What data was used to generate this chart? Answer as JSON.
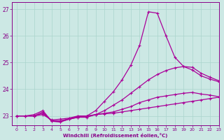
{
  "xlabel": "Windchill (Refroidissement éolien,°C)",
  "xlim": [
    -0.5,
    23
  ],
  "ylim": [
    22.65,
    27.25
  ],
  "yticks": [
    23,
    24,
    25,
    26,
    27
  ],
  "xticks": [
    0,
    1,
    2,
    3,
    4,
    5,
    6,
    7,
    8,
    9,
    10,
    11,
    12,
    13,
    14,
    15,
    16,
    17,
    18,
    19,
    20,
    21,
    22,
    23
  ],
  "bg_color": "#cce8e4",
  "line_color": "#aa0099",
  "grid_color": "#aad4cc",
  "lines": [
    {
      "x": [
        0,
        1,
        2,
        3,
        4,
        5,
        6,
        7,
        8,
        9,
        10,
        11,
        12,
        13,
        14,
        15,
        16,
        17,
        18,
        19,
        20,
        21,
        22,
        23
      ],
      "y": [
        23.0,
        23.0,
        23.0,
        23.05,
        22.85,
        22.88,
        22.92,
        23.0,
        23.0,
        23.05,
        23.08,
        23.1,
        23.15,
        23.2,
        23.25,
        23.3,
        23.35,
        23.4,
        23.45,
        23.5,
        23.55,
        23.6,
        23.65,
        23.7
      ]
    },
    {
      "x": [
        0,
        1,
        2,
        3,
        4,
        5,
        6,
        7,
        8,
        9,
        10,
        11,
        12,
        13,
        14,
        15,
        16,
        17,
        18,
        19,
        20,
        21,
        22,
        23
      ],
      "y": [
        23.0,
        23.0,
        23.0,
        23.1,
        22.82,
        22.82,
        22.9,
        22.98,
        22.98,
        23.05,
        23.1,
        23.15,
        23.25,
        23.35,
        23.5,
        23.6,
        23.7,
        23.75,
        23.8,
        23.85,
        23.88,
        23.82,
        23.78,
        23.72
      ]
    },
    {
      "x": [
        0,
        1,
        2,
        3,
        4,
        5,
        6,
        7,
        8,
        9,
        10,
        11,
        12,
        13,
        14,
        15,
        16,
        17,
        18,
        19,
        20,
        21,
        22,
        23
      ],
      "y": [
        23.0,
        23.0,
        23.0,
        23.15,
        22.8,
        22.78,
        22.88,
        22.95,
        22.95,
        23.05,
        23.2,
        23.4,
        23.6,
        23.85,
        24.1,
        24.35,
        24.55,
        24.7,
        24.8,
        24.85,
        24.82,
        24.6,
        24.45,
        24.32
      ]
    },
    {
      "x": [
        0,
        1,
        2,
        3,
        4,
        5,
        6,
        7,
        8,
        9,
        10,
        11,
        12,
        13,
        14,
        15,
        16,
        17,
        18,
        19,
        20,
        21,
        22,
        23
      ],
      "y": [
        23.0,
        23.0,
        23.05,
        23.2,
        22.8,
        22.78,
        22.88,
        22.95,
        23.0,
        23.2,
        23.55,
        23.9,
        24.35,
        24.9,
        25.65,
        26.9,
        26.85,
        26.0,
        25.2,
        24.85,
        24.72,
        24.5,
        24.38,
        24.28
      ]
    }
  ]
}
